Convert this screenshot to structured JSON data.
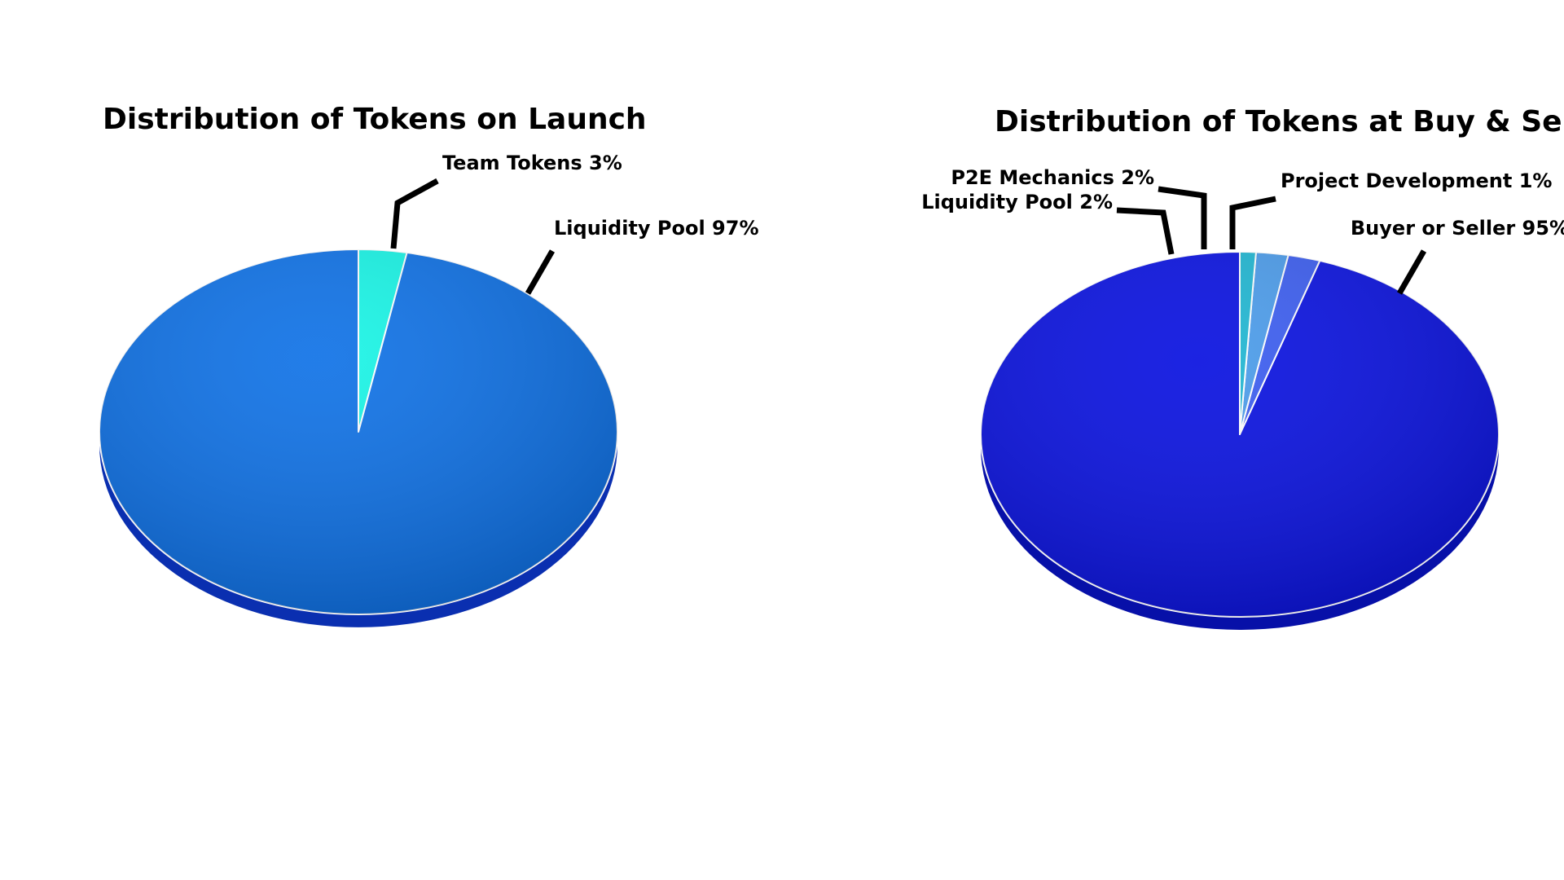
{
  "chart_data": [
    {
      "type": "pie",
      "title": "Distribution of Tokens on Launch",
      "slices": [
        {
          "label": "Team Tokens 3%",
          "name": "Team Tokens",
          "value": 3,
          "color": "#14F5E6"
        },
        {
          "label": "Liquidity Pool 97%",
          "name": "Liquidity Pool",
          "value": 97,
          "color": "#0A6FE6"
        }
      ],
      "side_color": "#0A2FB0"
    },
    {
      "type": "pie",
      "title": "Distribution of Tokens at Buy & Sell",
      "slices": [
        {
          "label": "Buyer or Seller 95%",
          "name": "Buyer or Seller",
          "value": 95,
          "color": "#0810E0"
        },
        {
          "label": "Liquidity Pool 2%",
          "name": "Liquidity Pool",
          "value": 2,
          "color": "#3A5CF0"
        },
        {
          "label": "P2E Mechanics 2%",
          "name": "P2E Mechanics",
          "value": 2,
          "color": "#4A9BEA"
        },
        {
          "label": "Project Development 1%",
          "name": "Project Development",
          "value": 1,
          "color": "#1EB6D2"
        }
      ],
      "side_color": "#0710A8"
    }
  ]
}
